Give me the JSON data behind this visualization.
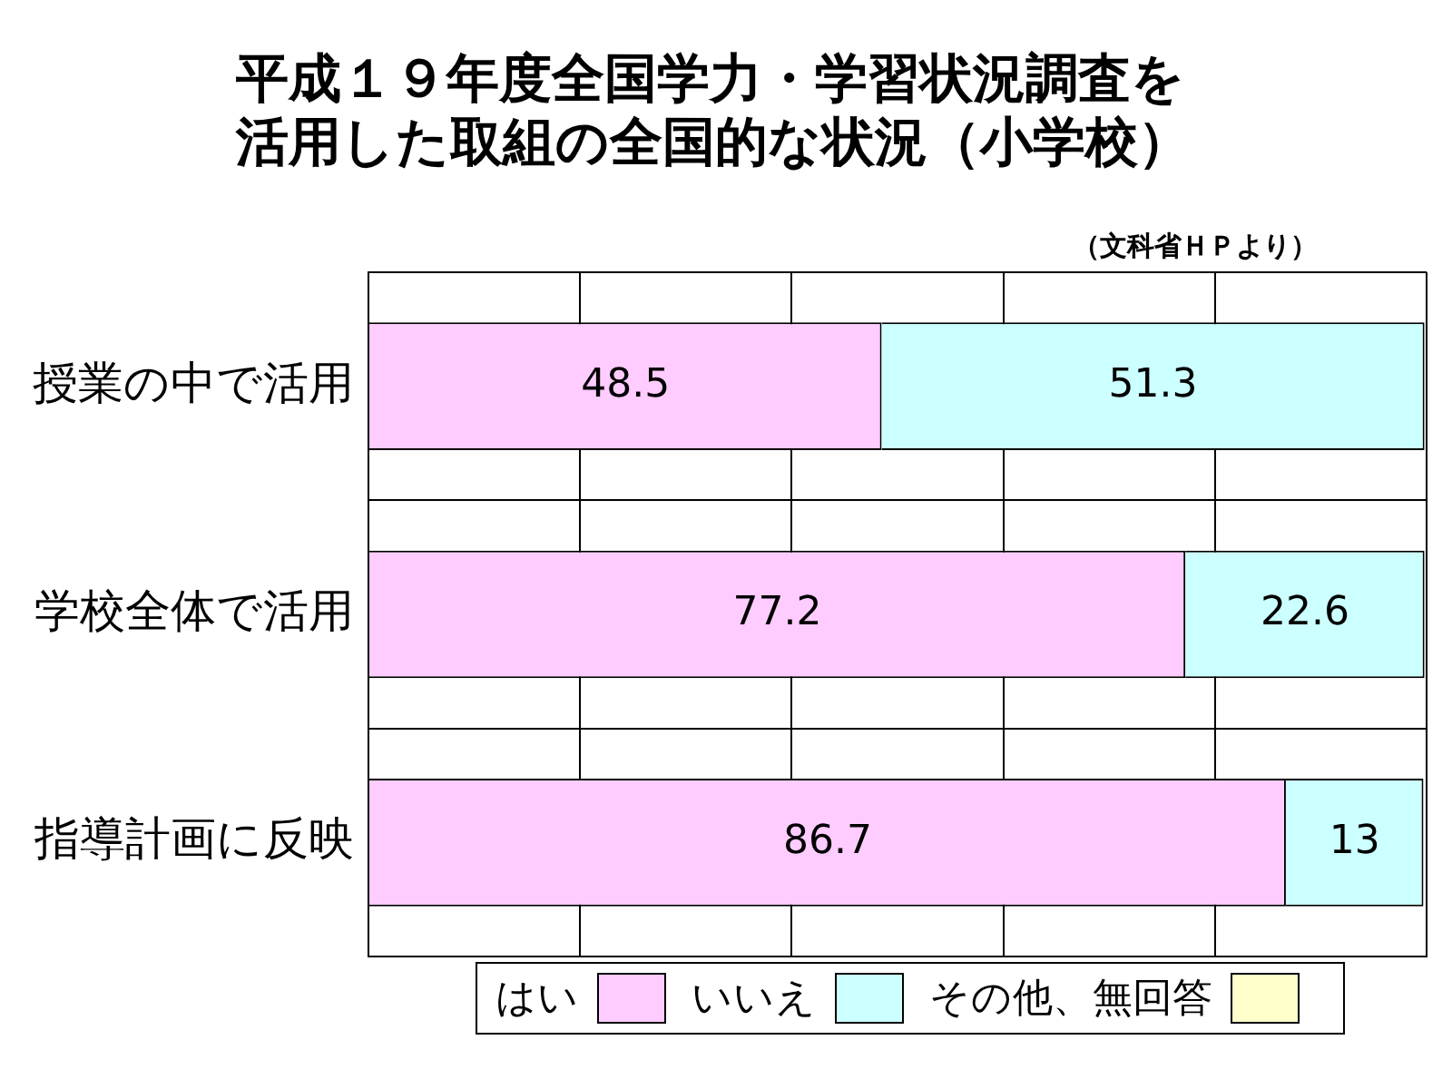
{
  "chart_data": {
    "type": "bar",
    "orientation": "horizontal",
    "stacked": true,
    "title": "平成１９年度全国学力・学習状況調査を活用した取組の全国的な状況（小学校）",
    "annotations": [
      "（文科省ＨＰより）"
    ],
    "categories": [
      "授業の中で活用",
      "学校全体で活用",
      "指導計画に反映"
    ],
    "series": [
      {
        "name": "はい",
        "color": "#ffccff",
        "values": [
          48.5,
          77.2,
          86.7
        ],
        "value_labels": [
          "48.5",
          "77.2",
          "86.7"
        ]
      },
      {
        "name": "いいえ",
        "color": "#ccffff",
        "values": [
          51.3,
          22.6,
          13
        ],
        "value_labels": [
          "51.3",
          "22.6",
          "13"
        ]
      },
      {
        "name": "その他、無回答",
        "color": "#ffffcc",
        "values": [
          null,
          null,
          null
        ],
        "value_labels": [
          null,
          null,
          null
        ]
      }
    ],
    "xlim": [
      0,
      100
    ],
    "xticks": [
      {
        "value": 0,
        "label": null
      },
      {
        "value": 20,
        "label": null
      },
      {
        "value": 40,
        "label": null
      },
      {
        "value": 60,
        "label": null
      },
      {
        "value": 80,
        "label": null
      },
      {
        "value": 100,
        "label": null
      }
    ],
    "grid": true,
    "legend": "bottom",
    "tick_labels": "y"
  }
}
